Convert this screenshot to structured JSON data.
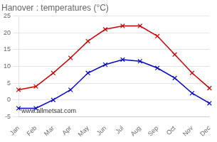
{
  "chart_data": {
    "type": "line",
    "title": "Hanover : temperatures (°C)",
    "categories": [
      "Jan",
      "Feb",
      "Mar",
      "Apr",
      "May",
      "Jun",
      "Jul",
      "Aug",
      "Sep",
      "Oct",
      "Nov",
      "Dec"
    ],
    "series": [
      {
        "color": "#cc0000",
        "marker": "x",
        "values": [
          3,
          4,
          8,
          12.5,
          17.5,
          21,
          22,
          22,
          19,
          13.5,
          8,
          3.5
        ]
      },
      {
        "color": "#0000cc",
        "marker": "x",
        "values": [
          -2.5,
          -2.5,
          0,
          3,
          8,
          10.5,
          12,
          11.5,
          9.5,
          6.5,
          2,
          -1
        ]
      }
    ],
    "ylim": [
      -5,
      25
    ],
    "yticks": [
      -5,
      0,
      5,
      10,
      15,
      20,
      25
    ],
    "grid": "y",
    "annotations": [
      "www.allmetsat.com"
    ]
  }
}
